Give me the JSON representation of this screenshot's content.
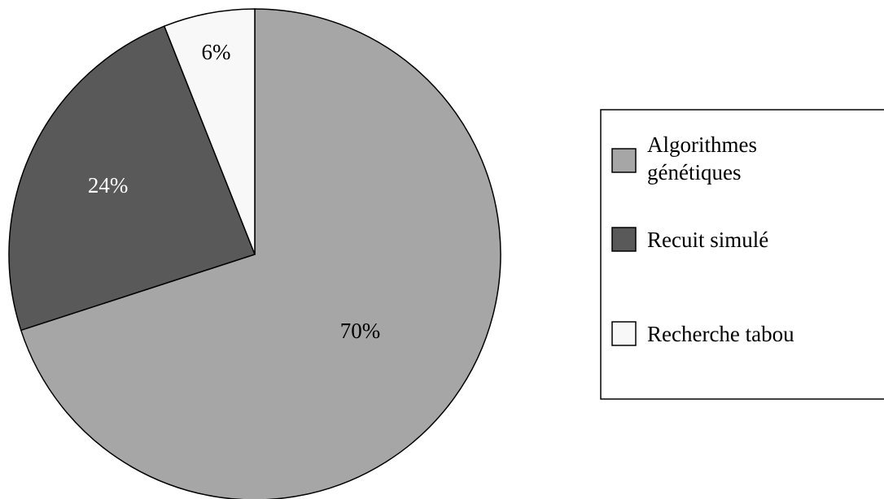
{
  "chart_data": {
    "type": "pie",
    "categories": [
      "Algorithmes génétiques",
      "Recuit simulé",
      "Recherche tabou"
    ],
    "values": [
      70,
      24,
      6
    ],
    "value_labels": [
      "70%",
      "24%",
      "6%"
    ],
    "legend_entries": [
      {
        "lines": [
          "Algorithmes",
          "génétiques"
        ]
      },
      {
        "lines": [
          "Recuit simulé"
        ]
      },
      {
        "lines": [
          "Recherche tabou"
        ]
      }
    ],
    "colors": [
      "#a6a6a6",
      "#595959",
      "#f8f8f8"
    ],
    "label_colors": [
      "#000000",
      "#ffffff",
      "#000000"
    ],
    "start": "top, clockwise",
    "legend_placement": "right"
  }
}
